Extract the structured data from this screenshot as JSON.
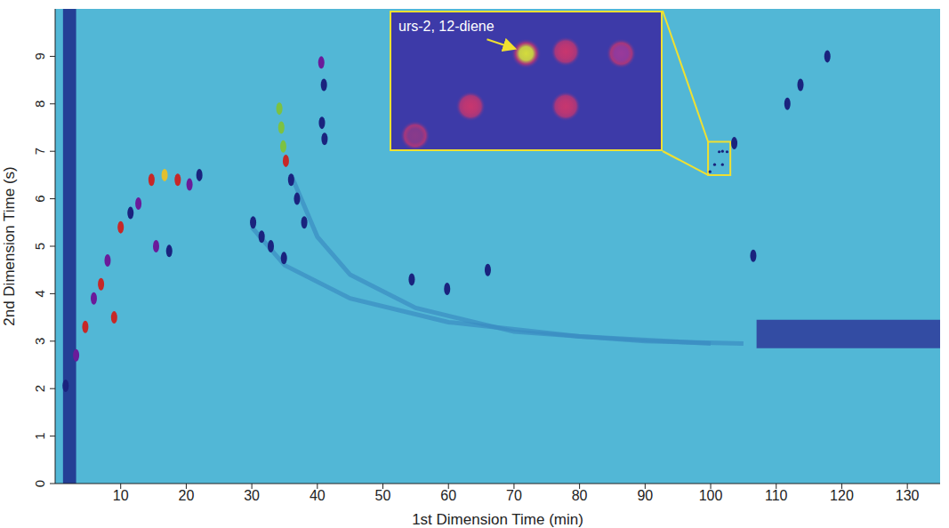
{
  "chart_data": {
    "type": "scatter",
    "xlabel": "1st Dimension Time (min)",
    "ylabel": "2nd Dimension Time (s)",
    "xlim": [
      0,
      135
    ],
    "xticks": [
      10,
      20,
      30,
      40,
      50,
      60,
      70,
      80,
      90,
      100,
      110,
      120,
      130
    ],
    "ylim": [
      0,
      10
    ],
    "yticks": [
      0,
      1,
      2,
      3,
      4,
      5,
      6,
      7,
      8,
      9
    ],
    "peaks": {
      "x": [
        1.6,
        3.2,
        4.6,
        5.9,
        7.0,
        8.0,
        9.0,
        10.0,
        11.5,
        12.7,
        14.7,
        16.7,
        18.7,
        20.5,
        22.0,
        15.4,
        17.4,
        34.2,
        34.5,
        34.8,
        35.2,
        36.0,
        36.9,
        38.0,
        30.2,
        31.5,
        32.9,
        34.9,
        40.6,
        41.0,
        40.7,
        41.1,
        103.6,
        117.8,
        113.7,
        111.7,
        106.5,
        54.4,
        59.8,
        66.0
      ],
      "y": [
        2.06,
        2.7,
        3.3,
        3.9,
        4.2,
        4.7,
        3.5,
        5.4,
        5.7,
        5.9,
        6.4,
        6.5,
        6.4,
        6.3,
        6.5,
        5.0,
        4.9,
        7.9,
        7.5,
        7.1,
        6.8,
        6.4,
        6.0,
        5.5,
        5.5,
        5.2,
        5.0,
        4.75,
        8.87,
        8.4,
        7.6,
        7.26,
        7.17,
        9.0,
        8.4,
        8.0,
        4.8,
        4.3,
        4.1,
        4.5
      ],
      "colors": [
        "#1a237e",
        "#6a1b9a",
        "#c62828",
        "#6a1b9a",
        "#c62828",
        "#6a1b9a",
        "#c62828",
        "#c62828",
        "#1a237e",
        "#6a1b9a",
        "#c62828",
        "#e0c030",
        "#c62828",
        "#6a1b9a",
        "#1a237e",
        "#6a1b9a",
        "#1a237e",
        "#7cc242",
        "#7cc242",
        "#7cc242",
        "#c62828",
        "#1a237e",
        "#1a237e",
        "#1a237e",
        "#1a237e",
        "#1a237e",
        "#1a237e",
        "#1a237e",
        "#6a1b9a",
        "#1a237e",
        "#1a237e",
        "#1a237e",
        "#1a237e",
        "#1a237e",
        "#1a237e",
        "#1a237e",
        "#1a237e",
        "#1a237e",
        "#1a237e",
        "#1a237e"
      ]
    },
    "bands": [
      {
        "x": [
          1.2,
          3.2
        ],
        "y": [
          0,
          10
        ],
        "color": "#1c2a8a"
      },
      {
        "x": [
          107,
          135
        ],
        "y": [
          2.85,
          3.45
        ],
        "color": "#2e3a9a"
      }
    ],
    "streaks": [
      {
        "x": [
          36,
          40,
          45,
          55,
          70,
          90,
          105
        ],
        "y": [
          6.5,
          5.2,
          4.4,
          3.7,
          3.2,
          3.0,
          2.95
        ],
        "color": "#3a8cc2"
      },
      {
        "x": [
          30,
          35,
          45,
          60,
          80,
          100
        ],
        "y": [
          5.4,
          4.6,
          3.9,
          3.4,
          3.1,
          2.95
        ],
        "color": "#3a8cc2"
      }
    ],
    "inset": {
      "label": "urs-2, 12-diene",
      "xlim": [
        99.6,
        103
      ],
      "ylim": [
        6.5,
        7.2
      ],
      "peaks": {
        "x": [
          101.3,
          101.8,
          102.5,
          100.6,
          101.8,
          99.9
        ],
        "y": [
          6.99,
          7.0,
          6.99,
          6.72,
          6.72,
          6.57
        ],
        "colors": [
          "#d4dc3c",
          "#c8366e",
          "#9a3a9a",
          "#c8366e",
          "#c8366e",
          "#8a3a8a"
        ]
      }
    }
  }
}
